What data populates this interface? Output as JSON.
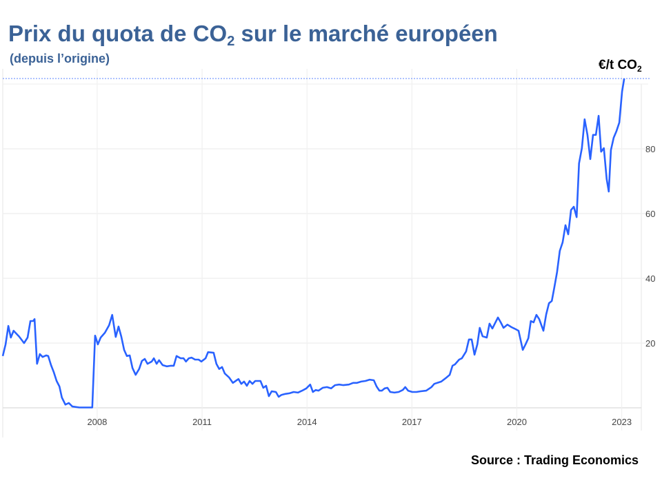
{
  "chart_data": {
    "type": "line",
    "title": "Prix du quota de CO",
    "title_subscript": "2",
    "title_suffix": " sur le marché européen",
    "subtitle": "(depuis l’origine)",
    "ylabel": "€/t CO",
    "ylabel_subscript": "2",
    "source": "Source : Trading Economics",
    "xlim": [
      2005.3,
      2023.56
    ],
    "ylim": [
      0,
      100
    ],
    "x_ticks": [
      2008,
      2011,
      2014,
      2017,
      2020,
      2023
    ],
    "x_tick_labels": [
      "2008",
      "2011",
      "2014",
      "2017",
      "2020",
      "2023"
    ],
    "y_ticks": [
      20,
      40,
      60,
      80
    ],
    "y_tick_labels": [
      "20",
      "40",
      "60",
      "80"
    ],
    "grid": true,
    "line_color": "#2962ff",
    "title_color": "#3b6296",
    "last_value_marker": 101.7,
    "series": [
      {
        "name": "Prix du quota de CO2",
        "x": [
          2005.3,
          2005.38,
          2005.46,
          2005.53,
          2005.61,
          2005.77,
          2005.91,
          2006.01,
          2006.09,
          2006.17,
          2006.21,
          2006.28,
          2006.36,
          2006.44,
          2006.54,
          2006.6,
          2006.68,
          2006.76,
          2006.84,
          2006.92,
          2006.99,
          2007.09,
          2007.19,
          2007.29,
          2007.49,
          2007.86,
          2007.94,
          2008.02,
          2008.1,
          2008.22,
          2008.34,
          2008.43,
          2008.53,
          2008.61,
          2008.69,
          2008.77,
          2008.85,
          2008.93,
          2009.01,
          2009.1,
          2009.2,
          2009.28,
          2009.36,
          2009.44,
          2009.56,
          2009.62,
          2009.7,
          2009.77,
          2009.87,
          2009.99,
          2010.11,
          2010.19,
          2010.27,
          2010.39,
          2010.47,
          2010.54,
          2010.62,
          2010.7,
          2010.8,
          2010.9,
          2010.98,
          2011.1,
          2011.17,
          2011.33,
          2011.41,
          2011.49,
          2011.57,
          2011.65,
          2011.77,
          2011.88,
          2011.96,
          2012.04,
          2012.12,
          2012.2,
          2012.28,
          2012.36,
          2012.44,
          2012.52,
          2012.67,
          2012.75,
          2012.83,
          2012.91,
          2012.99,
          2013.11,
          2013.19,
          2013.27,
          2013.38,
          2013.5,
          2013.62,
          2013.74,
          2013.86,
          2013.98,
          2014.09,
          2014.17,
          2014.25,
          2014.33,
          2014.45,
          2014.57,
          2014.69,
          2014.8,
          2014.92,
          2015.04,
          2015.2,
          2015.32,
          2015.43,
          2015.55,
          2015.67,
          2015.79,
          2015.91,
          2015.99,
          2016.07,
          2016.14,
          2016.22,
          2016.3,
          2016.38,
          2016.5,
          2016.62,
          2016.74,
          2016.81,
          2016.89,
          2017.01,
          2017.13,
          2017.25,
          2017.41,
          2017.56,
          2017.64,
          2017.84,
          2017.96,
          2018.08,
          2018.16,
          2018.23,
          2018.35,
          2018.43,
          2018.55,
          2018.63,
          2018.71,
          2018.79,
          2018.87,
          2018.94,
          2019.02,
          2019.14,
          2019.22,
          2019.3,
          2019.38,
          2019.46,
          2019.54,
          2019.62,
          2019.73,
          2019.85,
          2019.93,
          2020.05,
          2020.17,
          2020.25,
          2020.33,
          2020.4,
          2020.48,
          2020.56,
          2020.64,
          2020.76,
          2020.84,
          2020.92,
          2021.0,
          2021.07,
          2021.15,
          2021.23,
          2021.31,
          2021.39,
          2021.47,
          2021.55,
          2021.63,
          2021.71,
          2021.78,
          2021.86,
          2021.94,
          2022.02,
          2022.1,
          2022.18,
          2022.26,
          2022.34,
          2022.41,
          2022.49,
          2022.57,
          2022.63,
          2022.69,
          2022.77,
          2022.85,
          2022.93,
          2023.01,
          2023.07
        ],
        "y": [
          16,
          19.6,
          25.3,
          21.7,
          23.8,
          22,
          20,
          21.7,
          26.8,
          26.8,
          27.4,
          13.6,
          16.6,
          15.7,
          16.2,
          16,
          13.2,
          11,
          8.3,
          6.6,
          3.2,
          1,
          1.5,
          0.4,
          0.1,
          0.1,
          22.3,
          19.6,
          21.7,
          23.2,
          25.5,
          28.7,
          21.9,
          25.1,
          22,
          17.9,
          16,
          16.2,
          12.3,
          10.2,
          12,
          14.5,
          15.1,
          13.6,
          14.3,
          15.3,
          13.6,
          14.7,
          13.2,
          12.8,
          13,
          13,
          16,
          15.3,
          15.3,
          14.3,
          15.3,
          15.5,
          14.9,
          14.9,
          14.3,
          15.3,
          17.2,
          17,
          13.6,
          12,
          12.6,
          10.6,
          9.4,
          7.7,
          8.3,
          8.9,
          7.4,
          8.1,
          6.8,
          8.3,
          7.4,
          8.3,
          8.3,
          6.2,
          6.8,
          3.6,
          5.1,
          4.9,
          3.4,
          4,
          4.3,
          4.5,
          4.9,
          4.7,
          5.3,
          6,
          7.2,
          4.9,
          5.5,
          5.3,
          6.2,
          6.4,
          6,
          7,
          7.2,
          7,
          7.2,
          7.7,
          7.7,
          8.1,
          8.3,
          8.7,
          8.5,
          6.6,
          5.3,
          5.3,
          6,
          6.2,
          4.9,
          4.7,
          4.9,
          5.5,
          6.4,
          5.3,
          4.9,
          4.9,
          5.1,
          5.3,
          6.4,
          7.4,
          8.1,
          9.1,
          10.2,
          13,
          13.4,
          14.9,
          15.3,
          17.4,
          21.1,
          21.1,
          16.4,
          19.6,
          24.7,
          22.1,
          21.7,
          26,
          24.5,
          26.2,
          27.9,
          26.4,
          24.7,
          25.7,
          24.9,
          24.5,
          23.8,
          17.9,
          19.6,
          21.5,
          26.8,
          26.4,
          28.7,
          27.4,
          23.8,
          28.9,
          32.3,
          33,
          37,
          41.9,
          48.5,
          51.1,
          56.4,
          53.6,
          61.1,
          62.1,
          58.9,
          75.5,
          80.2,
          89.1,
          84.3,
          76.8,
          84.3,
          84.3,
          90.2,
          79.1,
          80.2,
          70.6,
          66.8,
          79.6,
          83.4,
          85.5,
          88.1,
          97.7,
          101.7
        ]
      }
    ]
  }
}
